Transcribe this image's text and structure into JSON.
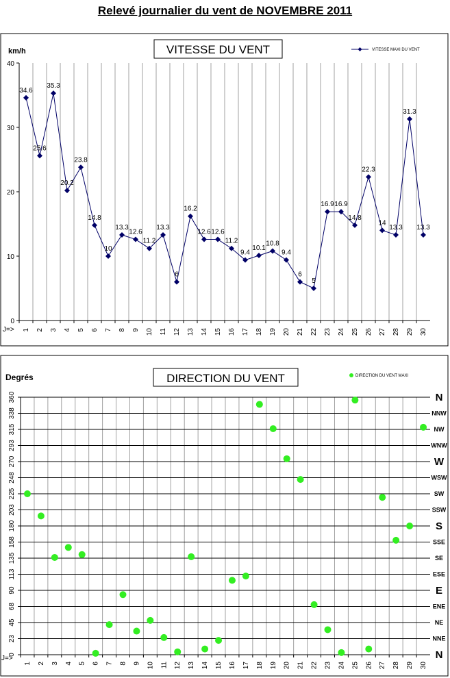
{
  "page_title": "Relevé journalier du vent de NOVEMBRE 2011",
  "chart_data": [
    {
      "type": "line",
      "title": "VITESSE DU VENT",
      "ylabel": "km/h",
      "x_prefix": "J=>",
      "ylim": [
        0,
        40
      ],
      "yticks": [
        "0",
        "10",
        "20",
        "30",
        "40"
      ],
      "categories": [
        "1",
        "2",
        "3",
        "4",
        "5",
        "6",
        "7",
        "8",
        "9",
        "10",
        "11",
        "12",
        "13",
        "14",
        "15",
        "16",
        "17",
        "18",
        "19",
        "20",
        "21",
        "22",
        "23",
        "24",
        "25",
        "26",
        "27",
        "28",
        "29",
        "30"
      ],
      "series": [
        {
          "name": "VITESSE MAXI DU VENT",
          "color": "#000066",
          "values": [
            34.6,
            25.6,
            35.3,
            20.2,
            23.8,
            14.8,
            10,
            13.3,
            12.6,
            11.2,
            13.3,
            6,
            16.2,
            12.6,
            12.6,
            11.2,
            9.4,
            10.1,
            10.8,
            9.4,
            6,
            5,
            16.9,
            16.9,
            14.8,
            22.3,
            14,
            13.3,
            31.3,
            13.3
          ]
        }
      ]
    },
    {
      "type": "scatter",
      "title": "DIRECTION DU VENT",
      "ylabel": "Degrés",
      "x_prefix": "J=>",
      "ylim": [
        0,
        360
      ],
      "yticks": [
        "0",
        "23",
        "45",
        "68",
        "90",
        "113",
        "135",
        "158",
        "180",
        "203",
        "225",
        "248",
        "270",
        "293",
        "315",
        "338",
        "360"
      ],
      "direction_labels": [
        "N",
        "NNE",
        "NE",
        "ENE",
        "E",
        "ESE",
        "SE",
        "SSE",
        "S",
        "SSW",
        "SW",
        "WSW",
        "W",
        "WNW",
        "NW",
        "NNW",
        "N"
      ],
      "categories": [
        "1",
        "2",
        "3",
        "4",
        "5",
        "6",
        "7",
        "8",
        "9",
        "10",
        "11",
        "12",
        "13",
        "14",
        "15",
        "16",
        "17",
        "18",
        "19",
        "20",
        "21",
        "22",
        "23",
        "24",
        "25",
        "26",
        "27",
        "28",
        "29",
        "30"
      ],
      "series": [
        {
          "name": "DIRECTION DU VENT MAXI",
          "color": "#33ee22",
          "values": [
            225,
            194,
            136,
            150,
            140,
            2,
            42,
            84,
            33,
            48,
            24,
            4,
            137,
            8,
            20,
            104,
            110,
            350,
            316,
            274,
            245,
            70,
            35,
            3,
            356,
            8,
            220,
            160,
            180,
            318
          ]
        }
      ]
    }
  ]
}
